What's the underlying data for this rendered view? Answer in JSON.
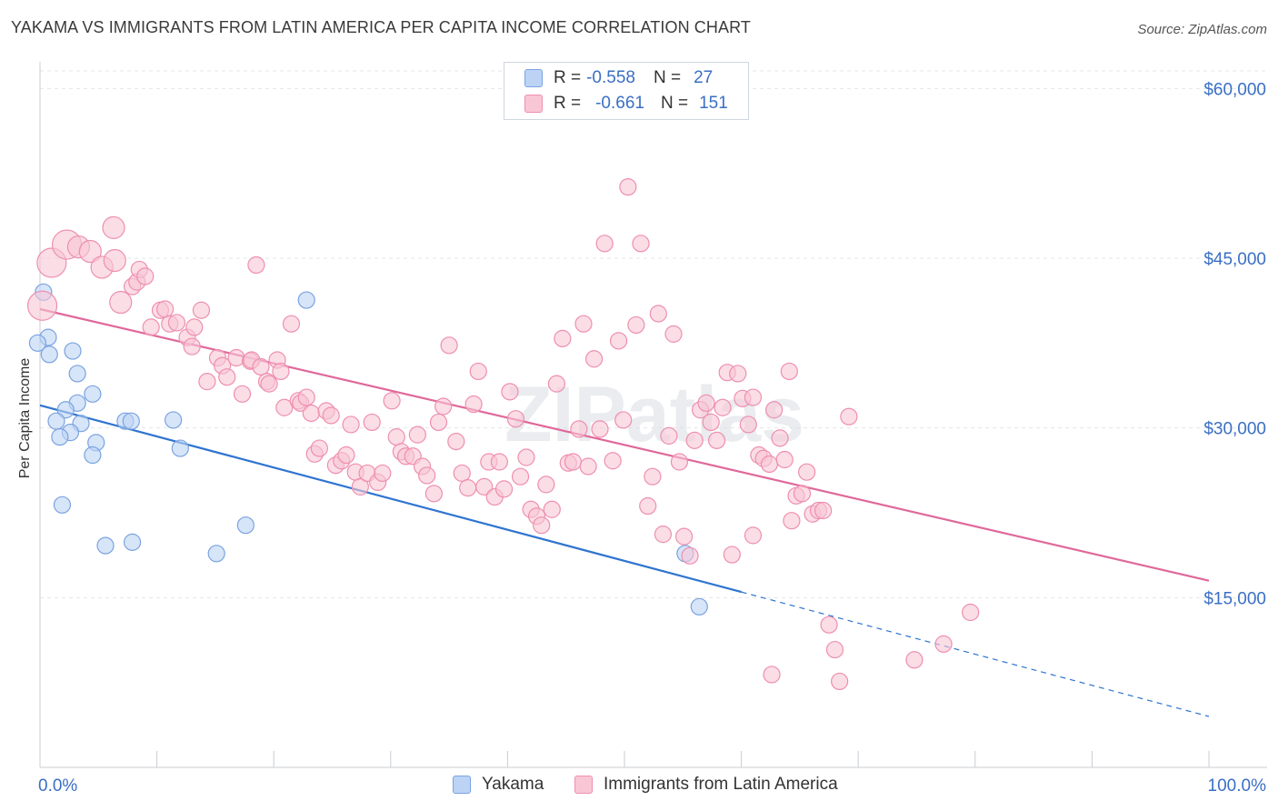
{
  "header": {
    "title": "YAKAMA VS IMMIGRANTS FROM LATIN AMERICA PER CAPITA INCOME CORRELATION CHART",
    "source": "Source: ZipAtlas.com"
  },
  "watermark": "ZIPatlas",
  "legend": {
    "rows": [
      {
        "r_label": "R =",
        "r_value": "-0.558",
        "n_label": "N =",
        "n_value": "27",
        "fill": "#bcd3f5",
        "stroke": "#7aa3e0"
      },
      {
        "r_label": "R =",
        "r_value": "-0.661",
        "n_label": "N =",
        "n_value": "151",
        "fill": "#f9c6d6",
        "stroke": "#ee8fb0"
      }
    ]
  },
  "chart_data": {
    "type": "scatter",
    "ylabel": "Per Capita Income",
    "xlim": [
      0,
      100
    ],
    "ylim": [
      0,
      63000
    ],
    "x_tick_labels": [
      "0.0%",
      "100.0%"
    ],
    "y_ticks": [
      15000,
      30000,
      45000,
      60000
    ],
    "y_tick_labels": [
      "$15,000",
      "$30,000",
      "$45,000",
      "$60,000"
    ],
    "grid": true,
    "series": [
      {
        "name": "Yakama",
        "color": "#7aa3e0",
        "fill": "#bcd3f5",
        "line_color": "#2f74d0",
        "trend": {
          "x0": 0,
          "y0": 32000,
          "x1": 60,
          "y1": 15500,
          "dash_to_x": 100,
          "dash_to_y": 4500
        },
        "points": [
          [
            0.3,
            42000
          ],
          [
            0.7,
            38000
          ],
          [
            0.8,
            36500
          ],
          [
            2.8,
            36800
          ],
          [
            3.2,
            34800
          ],
          [
            4.5,
            33000
          ],
          [
            3.2,
            32200
          ],
          [
            2.2,
            31600
          ],
          [
            1.4,
            30600
          ],
          [
            3.5,
            30400
          ],
          [
            7.3,
            30600
          ],
          [
            7.8,
            30600
          ],
          [
            11.4,
            30700
          ],
          [
            2.6,
            29600
          ],
          [
            1.7,
            29200
          ],
          [
            4.8,
            28700
          ],
          [
            12.0,
            28200
          ],
          [
            4.5,
            27600
          ],
          [
            1.9,
            23200
          ],
          [
            22.8,
            41300
          ],
          [
            5.6,
            19600
          ],
          [
            7.9,
            19900
          ],
          [
            15.1,
            18900
          ],
          [
            17.6,
            21400
          ],
          [
            55.2,
            18900
          ],
          [
            56.4,
            14200
          ],
          [
            -0.2,
            37500
          ]
        ]
      },
      {
        "name": "Immigrants from Latin America",
        "color": "#ee8fb0",
        "fill": "#f9c6d6",
        "line_color": "#e0689a",
        "trend": {
          "x0": 0,
          "y0": 40500,
          "x1": 100,
          "y1": 16500
        },
        "points": [
          [
            0.2,
            40800
          ],
          [
            1.0,
            44600
          ],
          [
            2.3,
            46200
          ],
          [
            3.3,
            46000
          ],
          [
            4.3,
            45600
          ],
          [
            5.3,
            44200
          ],
          [
            6.4,
            44800
          ],
          [
            6.3,
            47700
          ],
          [
            6.9,
            41100
          ],
          [
            7.9,
            42500
          ],
          [
            8.3,
            42900
          ],
          [
            8.5,
            44000
          ],
          [
            9.0,
            43400
          ],
          [
            9.5,
            38900
          ],
          [
            10.3,
            40400
          ],
          [
            10.7,
            40500
          ],
          [
            11.1,
            39200
          ],
          [
            11.7,
            39300
          ],
          [
            12.6,
            38000
          ],
          [
            13.0,
            37200
          ],
          [
            13.2,
            38900
          ],
          [
            13.8,
            40400
          ],
          [
            14.3,
            34100
          ],
          [
            15.2,
            36200
          ],
          [
            15.6,
            35500
          ],
          [
            16.0,
            34500
          ],
          [
            16.8,
            36200
          ],
          [
            17.3,
            33000
          ],
          [
            18.0,
            35900
          ],
          [
            18.1,
            36000
          ],
          [
            18.5,
            44400
          ],
          [
            18.9,
            35400
          ],
          [
            19.4,
            34100
          ],
          [
            19.6,
            33900
          ],
          [
            20.3,
            36000
          ],
          [
            20.6,
            35000
          ],
          [
            20.9,
            31800
          ],
          [
            21.5,
            39200
          ],
          [
            22.1,
            32400
          ],
          [
            22.3,
            32200
          ],
          [
            22.8,
            32700
          ],
          [
            23.2,
            31300
          ],
          [
            23.5,
            27700
          ],
          [
            23.9,
            28200
          ],
          [
            24.5,
            31500
          ],
          [
            24.9,
            31100
          ],
          [
            25.3,
            26700
          ],
          [
            25.8,
            27100
          ],
          [
            26.2,
            27600
          ],
          [
            26.6,
            30300
          ],
          [
            27.0,
            26100
          ],
          [
            27.4,
            24800
          ],
          [
            28.0,
            26000
          ],
          [
            28.4,
            30500
          ],
          [
            28.9,
            25200
          ],
          [
            29.3,
            26000
          ],
          [
            30.1,
            32400
          ],
          [
            30.5,
            29200
          ],
          [
            30.9,
            27900
          ],
          [
            31.3,
            27500
          ],
          [
            31.9,
            27500
          ],
          [
            32.3,
            29400
          ],
          [
            32.7,
            26600
          ],
          [
            33.1,
            25800
          ],
          [
            33.7,
            24200
          ],
          [
            34.1,
            30500
          ],
          [
            34.5,
            31900
          ],
          [
            35.0,
            37300
          ],
          [
            35.6,
            28800
          ],
          [
            36.1,
            26000
          ],
          [
            36.6,
            24700
          ],
          [
            37.1,
            32100
          ],
          [
            37.5,
            35000
          ],
          [
            38.0,
            24800
          ],
          [
            38.4,
            27000
          ],
          [
            38.9,
            23900
          ],
          [
            39.3,
            27000
          ],
          [
            39.7,
            24600
          ],
          [
            40.2,
            33200
          ],
          [
            40.7,
            30800
          ],
          [
            41.1,
            25700
          ],
          [
            41.6,
            27400
          ],
          [
            42.0,
            22800
          ],
          [
            42.5,
            22200
          ],
          [
            42.9,
            21400
          ],
          [
            43.3,
            25000
          ],
          [
            43.8,
            22800
          ],
          [
            44.2,
            33900
          ],
          [
            44.7,
            37900
          ],
          [
            45.2,
            26900
          ],
          [
            45.6,
            27000
          ],
          [
            46.1,
            29900
          ],
          [
            46.5,
            39200
          ],
          [
            46.9,
            26600
          ],
          [
            47.4,
            36100
          ],
          [
            47.9,
            29900
          ],
          [
            48.3,
            46300
          ],
          [
            49.0,
            27100
          ],
          [
            49.5,
            37700
          ],
          [
            49.9,
            30700
          ],
          [
            50.3,
            51300
          ],
          [
            51.0,
            39100
          ],
          [
            51.4,
            46300
          ],
          [
            52.0,
            23100
          ],
          [
            52.4,
            25700
          ],
          [
            52.9,
            40100
          ],
          [
            53.3,
            20600
          ],
          [
            53.8,
            29300
          ],
          [
            54.2,
            38300
          ],
          [
            54.7,
            27000
          ],
          [
            55.1,
            20400
          ],
          [
            55.6,
            18700
          ],
          [
            56.0,
            28900
          ],
          [
            56.5,
            31600
          ],
          [
            57.0,
            32200
          ],
          [
            57.4,
            30500
          ],
          [
            57.9,
            28900
          ],
          [
            58.4,
            31800
          ],
          [
            58.8,
            34900
          ],
          [
            59.2,
            18800
          ],
          [
            59.7,
            34800
          ],
          [
            60.1,
            32600
          ],
          [
            60.6,
            30300
          ],
          [
            61.0,
            32700
          ],
          [
            61.5,
            27600
          ],
          [
            61.9,
            27300
          ],
          [
            62.4,
            26800
          ],
          [
            62.8,
            31600
          ],
          [
            63.3,
            29100
          ],
          [
            63.7,
            27200
          ],
          [
            64.3,
            21800
          ],
          [
            64.7,
            24000
          ],
          [
            65.2,
            24200
          ],
          [
            65.6,
            26100
          ],
          [
            66.1,
            22400
          ],
          [
            66.6,
            22700
          ],
          [
            67.0,
            22700
          ],
          [
            67.5,
            12600
          ],
          [
            68.0,
            10400
          ],
          [
            68.4,
            7600
          ],
          [
            69.2,
            31000
          ],
          [
            77.3,
            10900
          ],
          [
            79.6,
            13700
          ],
          [
            74.8,
            9500
          ],
          [
            62.6,
            8200
          ],
          [
            61.0,
            20500
          ],
          [
            64.1,
            35000
          ]
        ]
      }
    ]
  }
}
